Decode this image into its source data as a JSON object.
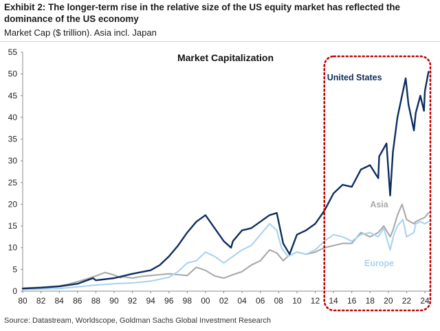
{
  "header": {
    "title": "Exhibit 2: The longer-term rise in the relative size of the US equity market has reflected the dominance of the US economy",
    "subtitle": "Market Cap ($ trillion). Asia incl. Japan"
  },
  "footer": {
    "source": "Source: Datastream, Worldscope, Goldman Sachs Global Investment Research"
  },
  "colors": {
    "us": "#0d2d5e",
    "asia": "#a8a8a8",
    "europe": "#a9d3f0",
    "highlight": "#c00000",
    "axis": "#888888"
  },
  "chart_data": {
    "type": "line",
    "title": "Market Capitalization",
    "xlabel": "",
    "ylabel": "",
    "xlim": [
      1980,
      2024.6
    ],
    "ylim": [
      0,
      55
    ],
    "y_ticks": [
      0,
      5,
      10,
      15,
      20,
      25,
      30,
      35,
      40,
      45,
      50,
      55
    ],
    "x_tick_labels": [
      "80",
      "82",
      "84",
      "86",
      "88",
      "90",
      "92",
      "94",
      "96",
      "98",
      "00",
      "02",
      "04",
      "06",
      "08",
      "10",
      "12",
      "14",
      "16",
      "18",
      "20",
      "22",
      "24"
    ],
    "x_tick_years": [
      1980,
      1982,
      1984,
      1986,
      1988,
      1990,
      1992,
      1994,
      1996,
      1998,
      2000,
      2002,
      2004,
      2006,
      2008,
      2010,
      2012,
      2014,
      2016,
      2018,
      2020,
      2022,
      2024
    ],
    "highlight_range": [
      2013.0,
      2024.6
    ],
    "series": [
      {
        "name": "Asia",
        "label": "Asia",
        "color_key": "asia",
        "x": [
          1980,
          1982,
          1984,
          1985,
          1986,
          1987,
          1988,
          1989,
          1989.9,
          1990.7,
          1991,
          1992,
          1993,
          1994,
          1995,
          1996,
          1997,
          1998,
          1999,
          2000,
          2001,
          2002,
          2003,
          2004,
          2005,
          2006,
          2007,
          2007.8,
          2008.5,
          2009,
          2010,
          2011,
          2012,
          2013,
          2014,
          2015,
          2016,
          2017,
          2018,
          2018.9,
          2019.5,
          2020.2,
          2020.5,
          2021,
          2021.5,
          2022,
          2022.8,
          2023,
          2023.5,
          2024,
          2024.4
        ],
        "values": [
          0.7,
          0.9,
          1.2,
          1.6,
          2.2,
          2.8,
          3.5,
          4.3,
          3.8,
          3.1,
          3.3,
          3.0,
          3.4,
          3.6,
          3.8,
          4.0,
          3.8,
          3.6,
          5.5,
          4.8,
          3.5,
          3.0,
          3.8,
          4.5,
          6.0,
          7.0,
          9.5,
          8.8,
          7.0,
          8.0,
          9.0,
          8.5,
          9.0,
          10.0,
          10.5,
          11.0,
          11.0,
          13.5,
          12.5,
          13.5,
          15.0,
          12.5,
          14.0,
          17.5,
          20.0,
          16.5,
          15.5,
          16.0,
          16.5,
          17.0,
          18.0
        ]
      },
      {
        "name": "Europe",
        "label": "Europe",
        "color_key": "europe",
        "x": [
          1980,
          1982,
          1984,
          1986,
          1988,
          1990,
          1992,
          1994,
          1996,
          1997,
          1998,
          1999,
          2000,
          2001,
          2002,
          2003,
          2004,
          2005,
          2006,
          2007,
          2007.8,
          2008.3,
          2009,
          2010,
          2011,
          2012,
          2013,
          2014,
          2015,
          2016,
          2017,
          2018,
          2018.9,
          2019.5,
          2020.2,
          2020.6,
          2021,
          2021.6,
          2022,
          2022.8,
          2023,
          2023.5,
          2024,
          2024.4
        ],
        "values": [
          0.4,
          0.5,
          0.6,
          1.0,
          1.4,
          1.7,
          1.9,
          2.3,
          3.2,
          4.5,
          6.5,
          7.0,
          9.0,
          8.0,
          6.5,
          8.0,
          9.5,
          10.5,
          13.0,
          15.5,
          14.0,
          10.0,
          8.0,
          9.0,
          8.5,
          9.5,
          11.5,
          13.0,
          12.5,
          11.5,
          13.0,
          13.5,
          12.5,
          14.5,
          9.5,
          13.0,
          15.0,
          16.5,
          12.5,
          13.5,
          15.5,
          16.0,
          15.5,
          16.0
        ]
      },
      {
        "name": "United States",
        "label": "United States",
        "color_key": "us",
        "x": [
          1980,
          1982,
          1984,
          1986,
          1987.7,
          1988,
          1990,
          1992,
          1994,
          1995,
          1996,
          1997,
          1998,
          1999,
          2000,
          2001,
          2002,
          2002.8,
          2003,
          2004,
          2005,
          2006,
          2007,
          2007.8,
          2008.5,
          2009.2,
          2010,
          2011,
          2012,
          2013,
          2014,
          2015,
          2016,
          2017,
          2018,
          2018.9,
          2019,
          2019.8,
          2020.2,
          2020.5,
          2021,
          2021.9,
          2022.2,
          2022.8,
          2023,
          2023.5,
          2023.9,
          2024,
          2024.4
        ],
        "values": [
          0.6,
          0.8,
          1.1,
          1.7,
          3.0,
          2.5,
          3.0,
          4.0,
          4.8,
          6.0,
          8.0,
          10.5,
          13.5,
          16.0,
          17.5,
          14.5,
          11.5,
          10.0,
          11.5,
          14.0,
          14.5,
          16.0,
          17.5,
          18.0,
          11.0,
          8.5,
          13.0,
          14.0,
          15.5,
          18.5,
          22.5,
          24.5,
          24.0,
          28.0,
          29.0,
          26.0,
          31.0,
          34.0,
          22.0,
          32.0,
          40.0,
          49.0,
          43.0,
          37.0,
          41.0,
          45.0,
          41.5,
          46.0,
          50.5
        ]
      }
    ]
  }
}
